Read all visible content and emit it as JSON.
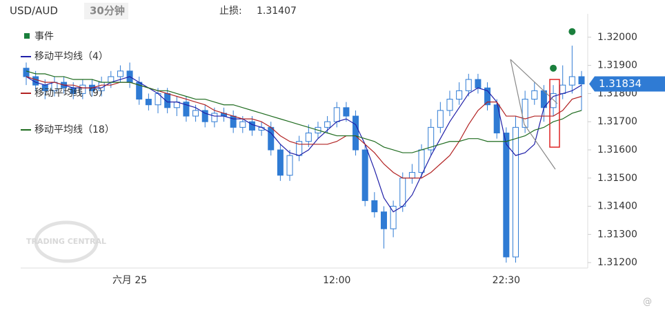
{
  "header": {
    "pair": "USD/AUD",
    "interval": "30分钟",
    "stop_label": "止损:",
    "stop_value": 1.31407
  },
  "watermark": "TRADING CENTRAL",
  "chart_data": {
    "type": "candlestick",
    "categories": [
      null,
      null,
      null,
      null,
      null,
      null,
      null,
      null,
      null,
      null,
      null,
      "六月 25",
      null,
      null,
      null,
      null,
      null,
      null,
      null,
      null,
      null,
      null,
      null,
      null,
      null,
      null,
      null,
      null,
      null,
      null,
      null,
      null,
      null,
      "12:00",
      null,
      null,
      null,
      null,
      null,
      null,
      null,
      null,
      null,
      null,
      null,
      null,
      null,
      null,
      null,
      null,
      null,
      "22:30",
      null,
      null,
      null,
      null,
      null,
      null,
      null,
      null
    ],
    "open": [
      1.3189,
      1.3186,
      1.3183,
      1.3181,
      1.3184,
      1.3182,
      1.318,
      1.3183,
      1.3181,
      1.3184,
      1.3186,
      1.3188,
      1.3184,
      1.3178,
      1.3176,
      1.318,
      1.3175,
      1.3177,
      1.3172,
      1.3174,
      1.317,
      1.3173,
      1.3172,
      1.3168,
      1.317,
      1.3167,
      1.3168,
      1.316,
      1.3151,
      1.3158,
      1.3163,
      1.3166,
      1.3168,
      1.317,
      1.3175,
      1.3172,
      1.316,
      1.3142,
      1.3138,
      1.3132,
      1.314,
      1.315,
      1.3152,
      1.316,
      1.3168,
      1.3174,
      1.3178,
      1.3181,
      1.3185,
      1.3182,
      1.3176,
      1.3166,
      1.3122,
      1.3168,
      1.3178,
      1.3181,
      1.3175,
      1.318,
      1.3183,
      1.3186
    ],
    "high": [
      1.3191,
      1.3188,
      1.3185,
      1.3186,
      1.3186,
      1.3184,
      1.3185,
      1.3185,
      1.3186,
      1.3188,
      1.319,
      1.3191,
      1.3186,
      1.318,
      1.3182,
      1.3182,
      1.3179,
      1.3179,
      1.3176,
      1.3176,
      1.3175,
      1.3175,
      1.3174,
      1.3172,
      1.3172,
      1.317,
      1.317,
      1.3162,
      1.316,
      1.3165,
      1.3169,
      1.317,
      1.3172,
      1.3177,
      1.3177,
      1.3174,
      1.3162,
      1.3145,
      1.314,
      1.3142,
      1.3152,
      1.3155,
      1.3162,
      1.3171,
      1.3177,
      1.3181,
      1.3184,
      1.3187,
      1.3187,
      1.3184,
      1.3178,
      1.3168,
      1.3172,
      1.3181,
      1.3184,
      1.3183,
      1.3183,
      1.319,
      1.3197,
      1.3188
    ],
    "low": [
      1.3183,
      1.3181,
      1.3178,
      1.3179,
      1.318,
      1.3178,
      1.3178,
      1.3179,
      1.3179,
      1.3182,
      1.3184,
      1.3182,
      1.3176,
      1.3174,
      1.3173,
      1.3173,
      1.3172,
      1.317,
      1.317,
      1.3168,
      1.3168,
      1.317,
      1.3166,
      1.3166,
      1.3165,
      1.3165,
      1.3158,
      1.3149,
      1.3149,
      1.3156,
      1.3161,
      1.3164,
      1.3166,
      1.3168,
      1.317,
      1.3158,
      1.314,
      1.3136,
      1.3125,
      1.3129,
      1.3138,
      1.3148,
      1.315,
      1.3158,
      1.3166,
      1.3172,
      1.3176,
      1.3179,
      1.318,
      1.3174,
      1.3164,
      1.312,
      1.312,
      1.3166,
      1.3176,
      1.317,
      1.3172,
      1.3178,
      1.318,
      1.3174
    ],
    "close": [
      1.3186,
      1.3183,
      1.3181,
      1.3184,
      1.3182,
      1.318,
      1.3183,
      1.3181,
      1.3184,
      1.3186,
      1.3188,
      1.3184,
      1.3178,
      1.3176,
      1.318,
      1.3175,
      1.3177,
      1.3172,
      1.3174,
      1.317,
      1.3173,
      1.3172,
      1.3168,
      1.317,
      1.3167,
      1.3168,
      1.316,
      1.3151,
      1.3158,
      1.3163,
      1.3166,
      1.3168,
      1.317,
      1.3175,
      1.3172,
      1.316,
      1.3142,
      1.3138,
      1.3132,
      1.314,
      1.315,
      1.3152,
      1.316,
      1.3168,
      1.3174,
      1.3178,
      1.3181,
      1.3185,
      1.3182,
      1.3176,
      1.3166,
      1.3122,
      1.3168,
      1.3178,
      1.3181,
      1.3175,
      1.318,
      1.3183,
      1.3186,
      1.31834
    ],
    "up_color": "#ffffff",
    "down_color": "#2f7bd4",
    "edge_color": "#2f7bd4",
    "series": [
      {
        "name": "移动平均线（4）",
        "color": "#1f1fa8",
        "values": [
          1.3186,
          1.3184,
          1.3183,
          1.3184,
          1.3183,
          1.3182,
          1.3182,
          1.3182,
          1.3182,
          1.3184,
          1.3185,
          1.3186,
          1.3184,
          1.3182,
          1.318,
          1.3177,
          1.3177,
          1.3176,
          1.3175,
          1.3173,
          1.3172,
          1.3172,
          1.3171,
          1.3171,
          1.3169,
          1.3168,
          1.3166,
          1.3162,
          1.3159,
          1.3158,
          1.316,
          1.3164,
          1.3167,
          1.317,
          1.3171,
          1.3169,
          1.3162,
          1.3153,
          1.3143,
          1.3138,
          1.314,
          1.3144,
          1.3151,
          1.3158,
          1.3164,
          1.317,
          1.3175,
          1.318,
          1.3182,
          1.3181,
          1.3177,
          1.3162,
          1.3158,
          1.3159,
          1.3162,
          1.3175,
          1.3179,
          1.318,
          1.3181,
          1.3183
        ]
      },
      {
        "name": "移动平均线（9）",
        "color": "#b22222",
        "values": [
          1.3186,
          1.3185,
          1.3184,
          1.3184,
          1.3183,
          1.3183,
          1.3182,
          1.3182,
          1.3183,
          1.3183,
          1.3184,
          1.3184,
          1.3183,
          1.3182,
          1.3181,
          1.318,
          1.3179,
          1.3178,
          1.3177,
          1.3176,
          1.3174,
          1.3173,
          1.3172,
          1.3171,
          1.3171,
          1.317,
          1.3168,
          1.3165,
          1.3163,
          1.3162,
          1.3162,
          1.3162,
          1.3162,
          1.3163,
          1.3165,
          1.3165,
          1.3162,
          1.3159,
          1.3155,
          1.3152,
          1.315,
          1.315,
          1.315,
          1.3152,
          1.3155,
          1.3158,
          1.3163,
          1.3169,
          1.3174,
          1.3177,
          1.3177,
          1.3172,
          1.3172,
          1.3171,
          1.3172,
          1.3172,
          1.3172,
          1.3174,
          1.3178,
          1.3179
        ]
      },
      {
        "name": "移动平均线（18）",
        "color": "#1e6b1e",
        "values": [
          1.3188,
          1.3187,
          1.3187,
          1.3186,
          1.3186,
          1.3185,
          1.3185,
          1.3185,
          1.3184,
          1.3184,
          1.3184,
          1.3184,
          1.3183,
          1.3182,
          1.3181,
          1.3181,
          1.318,
          1.3179,
          1.3178,
          1.3178,
          1.3177,
          1.3176,
          1.3176,
          1.3175,
          1.3174,
          1.3173,
          1.3172,
          1.3171,
          1.317,
          1.3169,
          1.3168,
          1.3167,
          1.3166,
          1.3165,
          1.3165,
          1.3165,
          1.3164,
          1.3163,
          1.3161,
          1.316,
          1.3159,
          1.3159,
          1.316,
          1.3161,
          1.3162,
          1.3163,
          1.3163,
          1.3164,
          1.3164,
          1.3163,
          1.3163,
          1.3163,
          1.3164,
          1.3165,
          1.3167,
          1.3168,
          1.317,
          1.3171,
          1.3173,
          1.3174
        ]
      }
    ],
    "events": {
      "name": "事件",
      "color": "#1a7f3c",
      "values": [
        null,
        null,
        null,
        null,
        null,
        null,
        null,
        null,
        null,
        null,
        null,
        null,
        null,
        null,
        null,
        null,
        null,
        null,
        null,
        null,
        null,
        null,
        null,
        null,
        null,
        null,
        null,
        null,
        null,
        null,
        null,
        null,
        null,
        null,
        null,
        null,
        null,
        null,
        null,
        null,
        null,
        null,
        null,
        null,
        null,
        null,
        null,
        null,
        null,
        null,
        null,
        null,
        null,
        null,
        null,
        null,
        1.3189,
        null,
        1.3202,
        null
      ]
    },
    "last_price": 1.31834,
    "last_price_color": "#2f7bd4",
    "ylim": [
      1.31188,
      1.32083
    ],
    "yticks": [
      {
        "value": 1.312,
        "label": "1.31200"
      },
      {
        "value": 1.313,
        "label": "1.31300"
      },
      {
        "value": 1.314,
        "label": "1.31400"
      },
      {
        "value": 1.315,
        "label": "1.31500"
      },
      {
        "value": 1.316,
        "label": "1.31600"
      },
      {
        "value": 1.317,
        "label": "1.31700"
      },
      {
        "value": 1.318,
        "label": "1.31800"
      },
      {
        "value": 1.319,
        "label": "1.31900"
      },
      {
        "value": 1.32,
        "label": "1.32000"
      }
    ],
    "y_axis_side": "right"
  }
}
